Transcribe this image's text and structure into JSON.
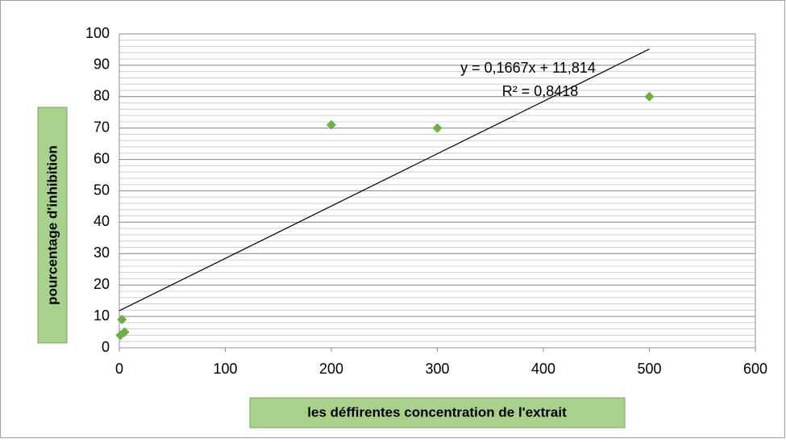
{
  "chart_data": {
    "type": "scatter",
    "x_label": "les déffirentes concentration de l'extrait",
    "y_label": "pourcentage d'inhibition",
    "x": [
      1,
      2.5,
      5,
      200,
      300,
      500
    ],
    "values": [
      4,
      9,
      5,
      71,
      70,
      80
    ],
    "color": "#70ad47",
    "xlim": [
      0,
      600
    ],
    "xticks": [
      0,
      100,
      200,
      300,
      400,
      500,
      600
    ],
    "ylim": [
      0,
      100
    ],
    "yticks": [
      0,
      10,
      20,
      30,
      40,
      50,
      60,
      70,
      80,
      90,
      100
    ],
    "grid": true,
    "minor_grid_step": 2,
    "trendline": {
      "equation": "y = 0,1667x + 11,814",
      "r2": "R² = 0,8418",
      "slope": 0.1667,
      "intercept": 11.814,
      "x": [
        0,
        500
      ]
    }
  }
}
